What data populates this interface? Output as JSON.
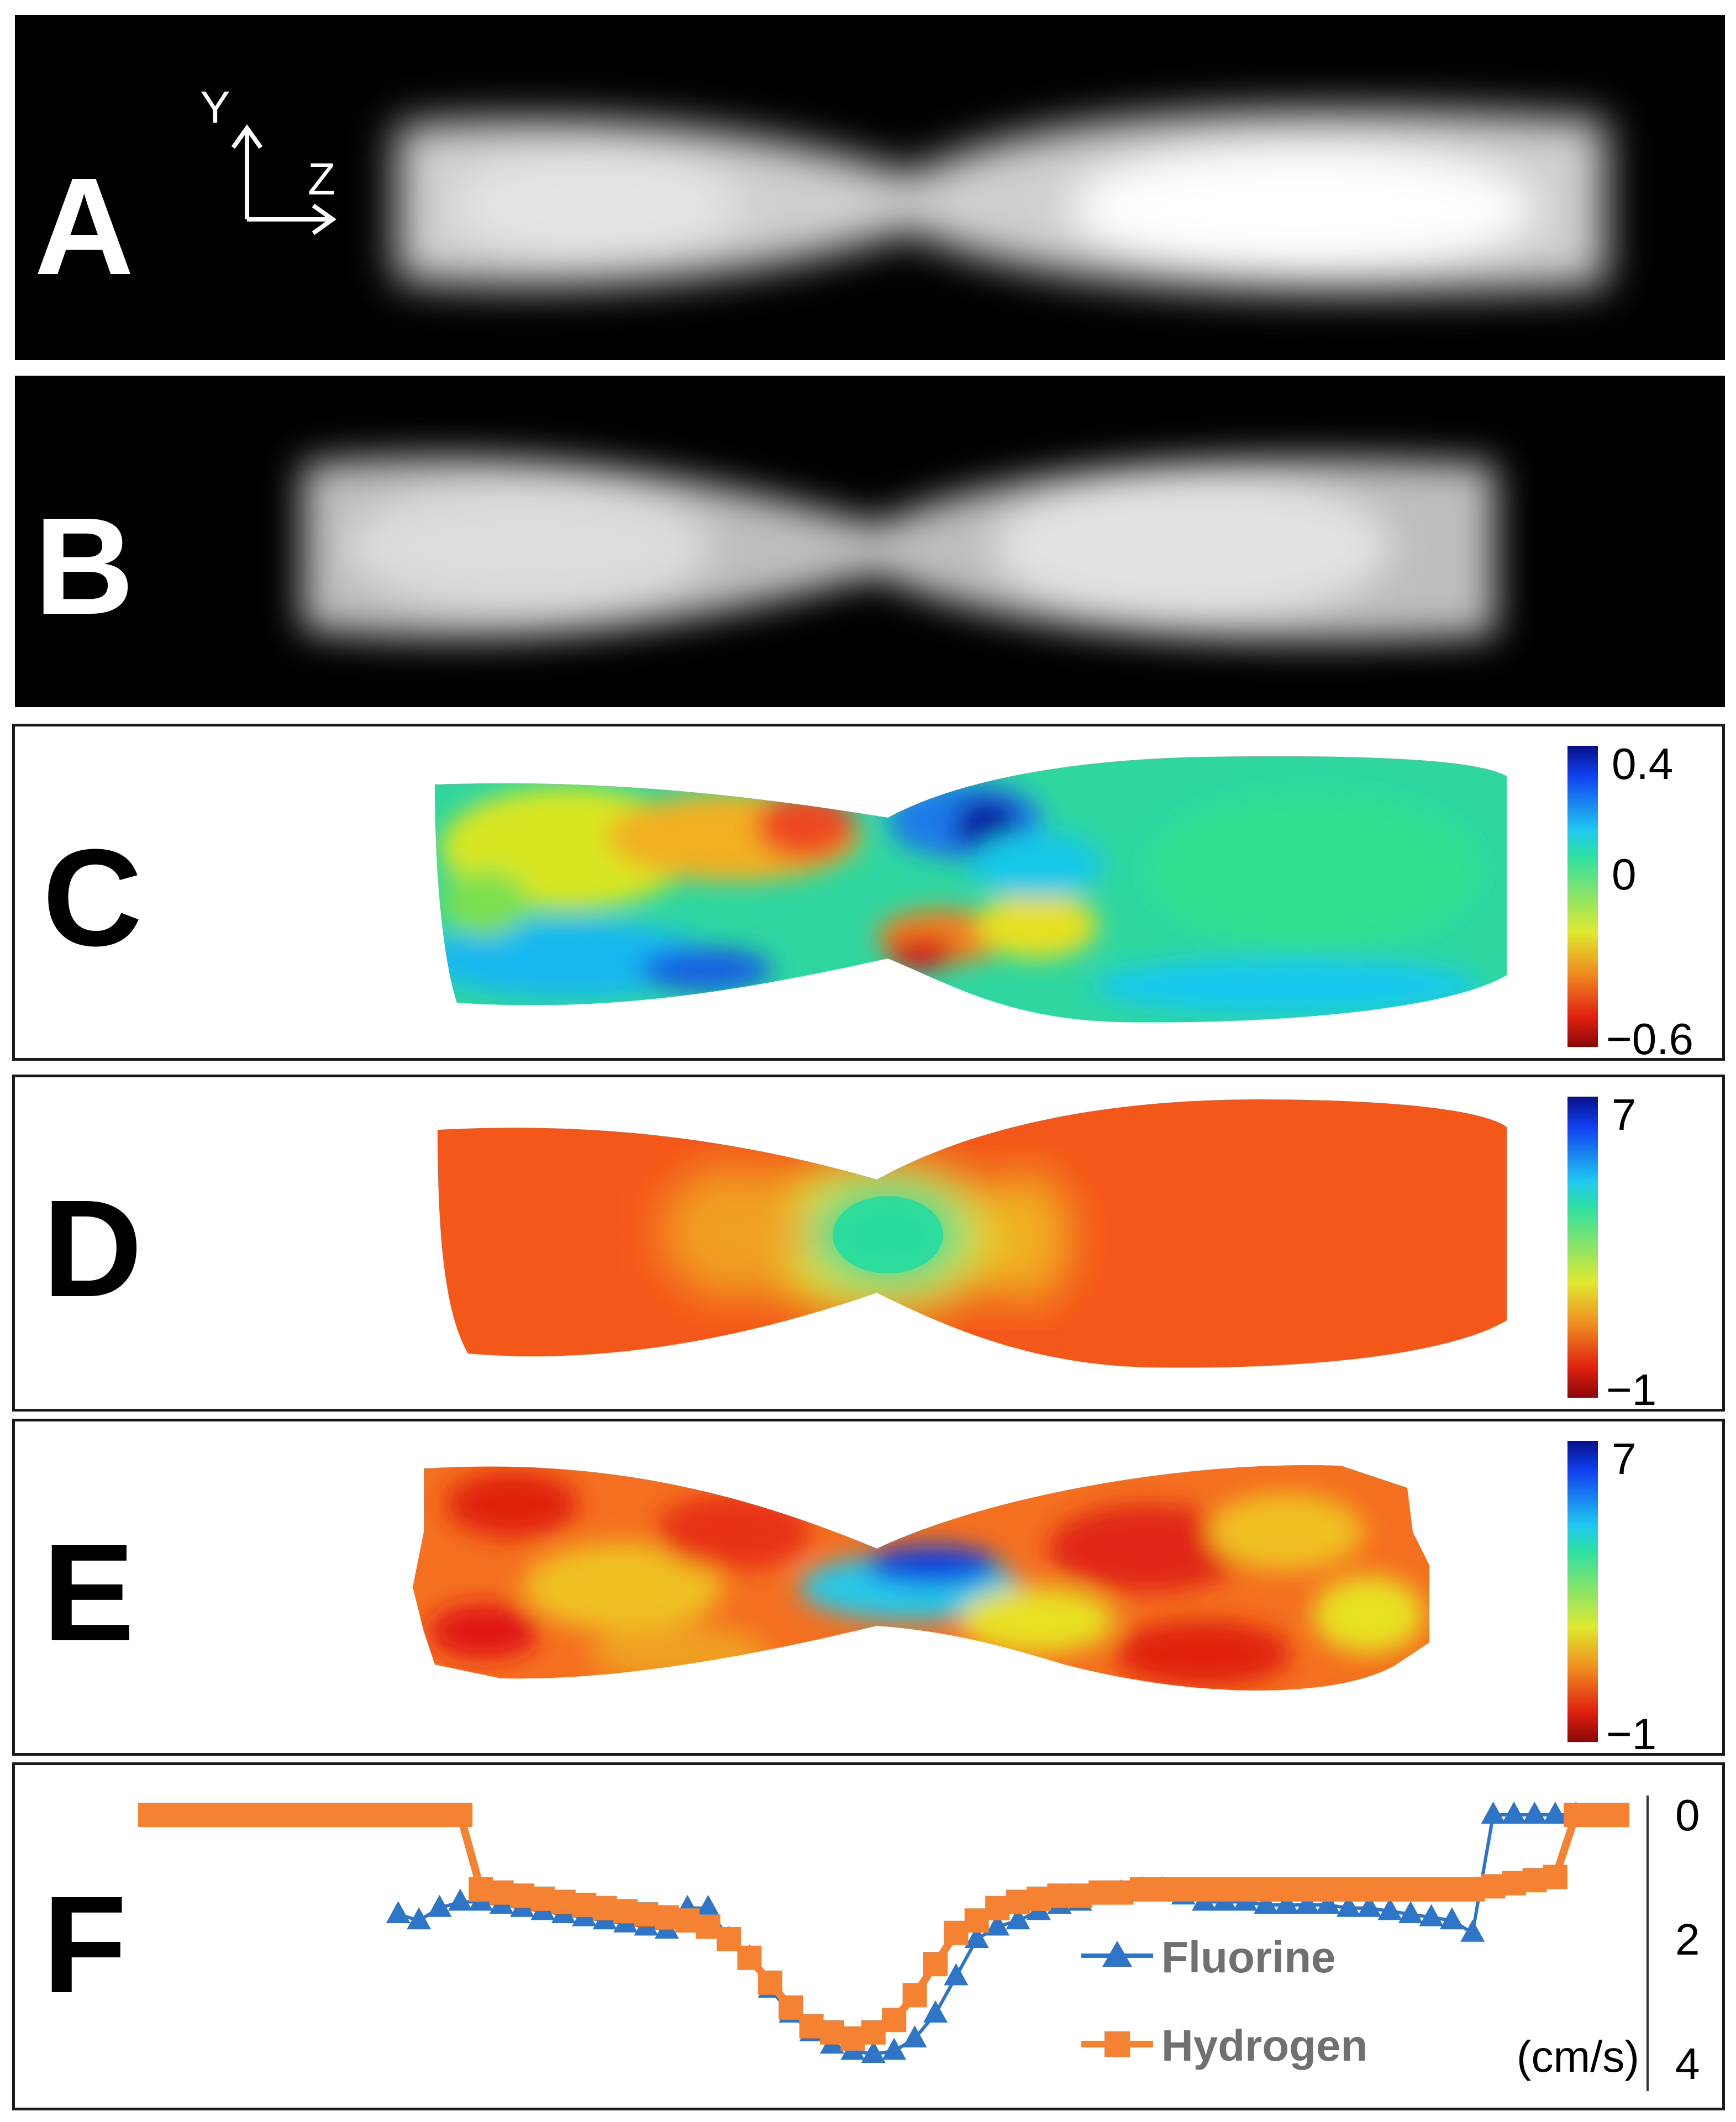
{
  "figure": {
    "panels": {
      "A": {
        "label": "A",
        "axis_y": "Y",
        "axis_z": "Z"
      },
      "B": {
        "label": "B"
      },
      "C": {
        "label": "C",
        "colorbar": {
          "max": "0.4",
          "mid": "0",
          "min": "−0.6"
        }
      },
      "D": {
        "label": "D",
        "colorbar": {
          "max": "7",
          "min": "−1"
        }
      },
      "E": {
        "label": "E",
        "colorbar": {
          "max": "7",
          "min": "−1"
        }
      },
      "F": {
        "label": "F"
      }
    },
    "colors": {
      "fluorine": "#2e75c8",
      "hydrogen": "#f58232",
      "frame": "#1a1a1a"
    }
  },
  "chart_data": {
    "type": "line",
    "xlabel": "",
    "ylabel": "(cm/s)",
    "y_ticks": [
      "0",
      "2",
      "4"
    ],
    "ylim": [
      0,
      4
    ],
    "y_inverted": true,
    "legend_placement": "bottom-center",
    "series": [
      {
        "name": "Fluorine",
        "marker": "triangle",
        "x": [
          0,
          1,
          2,
          3,
          4,
          5,
          6,
          7,
          8,
          9,
          10,
          11,
          12,
          13,
          14,
          15,
          16,
          17,
          18,
          19,
          20,
          21,
          22,
          23,
          24,
          25,
          26,
          27,
          28,
          29,
          30,
          31,
          32,
          33,
          34,
          35,
          36,
          37,
          38,
          39,
          40,
          41,
          42,
          43,
          44,
          45,
          46,
          47,
          48,
          49,
          50,
          51,
          52,
          53,
          54,
          55,
          56,
          57,
          58,
          59,
          60,
          61,
          62,
          63,
          64,
          65,
          66,
          67,
          68,
          69,
          70,
          71
        ],
        "values": [
          null,
          null,
          null,
          null,
          null,
          null,
          null,
          null,
          null,
          null,
          null,
          null,
          1.6,
          1.7,
          1.5,
          1.4,
          1.4,
          1.45,
          1.5,
          1.55,
          1.6,
          1.65,
          1.7,
          1.75,
          1.8,
          1.85,
          1.5,
          1.5,
          2.0,
          2.3,
          2.8,
          3.2,
          3.5,
          3.7,
          3.8,
          3.85,
          3.8,
          3.6,
          3.2,
          2.6,
          2.0,
          1.8,
          1.7,
          1.55,
          1.45,
          1.4,
          1.3,
          1.25,
          1.2,
          1.2,
          1.3,
          1.4,
          1.4,
          1.4,
          1.45,
          1.45,
          1.45,
          1.45,
          1.5,
          1.5,
          1.55,
          1.6,
          1.65,
          1.7,
          1.9,
          0,
          0,
          0,
          0,
          0,
          null,
          null
        ]
      },
      {
        "name": "Hydrogen",
        "marker": "square",
        "x": [
          0,
          1,
          2,
          3,
          4,
          5,
          6,
          7,
          8,
          9,
          10,
          11,
          12,
          13,
          14,
          15,
          16,
          17,
          18,
          19,
          20,
          21,
          22,
          23,
          24,
          25,
          26,
          27,
          28,
          29,
          30,
          31,
          32,
          33,
          34,
          35,
          36,
          37,
          38,
          39,
          40,
          41,
          42,
          43,
          44,
          45,
          46,
          47,
          48,
          49,
          50,
          51,
          52,
          53,
          54,
          55,
          56,
          57,
          58,
          59,
          60,
          61,
          62,
          63,
          64,
          65,
          66,
          67,
          68,
          69,
          70,
          71
        ],
        "values": [
          0,
          0,
          0,
          0,
          0,
          0,
          0,
          0,
          0,
          0,
          0,
          0,
          0,
          0,
          0,
          0,
          1.2,
          1.25,
          1.3,
          1.35,
          1.4,
          1.45,
          1.5,
          1.55,
          1.6,
          1.65,
          1.7,
          1.8,
          2.0,
          2.3,
          2.7,
          3.1,
          3.4,
          3.5,
          3.6,
          3.5,
          3.3,
          2.9,
          2.4,
          1.9,
          1.7,
          1.5,
          1.4,
          1.35,
          1.3,
          1.3,
          1.25,
          1.25,
          1.2,
          1.2,
          1.2,
          1.2,
          1.2,
          1.2,
          1.2,
          1.2,
          1.2,
          1.2,
          1.2,
          1.2,
          1.2,
          1.2,
          1.2,
          1.2,
          1.2,
          1.15,
          1.1,
          1.05,
          1.0,
          0,
          0,
          0
        ]
      }
    ]
  }
}
